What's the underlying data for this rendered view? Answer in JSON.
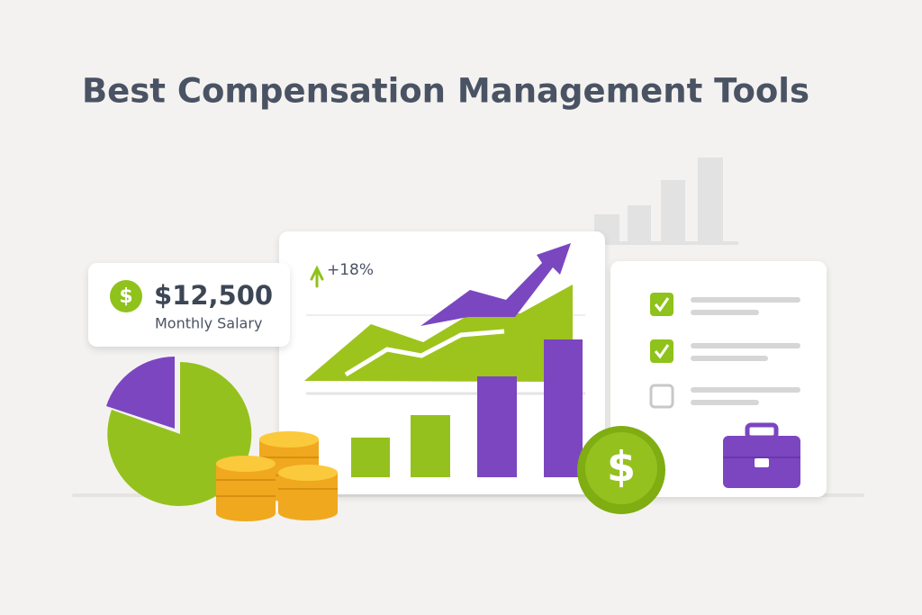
{
  "title": "Best Compensation Management Tools",
  "salary_card": {
    "icon": "$",
    "amount": "$12,500",
    "label": "Monthly Salary"
  },
  "growth_badge": {
    "text": "+18%"
  },
  "coin": {
    "symbol": "$"
  }
}
